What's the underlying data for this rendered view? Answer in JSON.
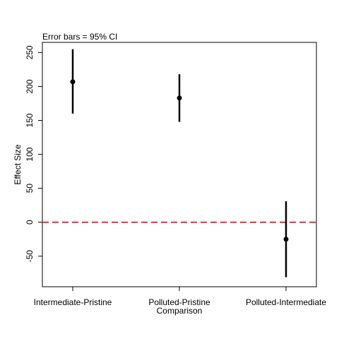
{
  "chart_data": {
    "type": "scatter",
    "title": "Error bars = 95% CI",
    "ylabel": "Effect Size",
    "xlabel": "Comparison",
    "categories": [
      "Intermediate-Pristine",
      "Polluted-Pristine",
      "Polluted-Intermediate"
    ],
    "points": [
      {
        "category": "Intermediate-Pristine",
        "estimate": 207,
        "lower": 160,
        "upper": 255
      },
      {
        "category": "Polluted-Pristine",
        "estimate": 183,
        "lower": 148,
        "upper": 218
      },
      {
        "category": "Polluted-Intermediate",
        "estimate": -25,
        "lower": -81,
        "upper": 31
      }
    ],
    "ylim": [
      -95,
      265
    ],
    "yticks": [
      -50,
      0,
      50,
      100,
      150,
      200,
      250
    ],
    "reference_line": {
      "y": 0,
      "style": "dashed",
      "color": "#e0303c"
    },
    "grid": false,
    "colors": {
      "points": "#000000",
      "errorbars": "#000000"
    }
  }
}
